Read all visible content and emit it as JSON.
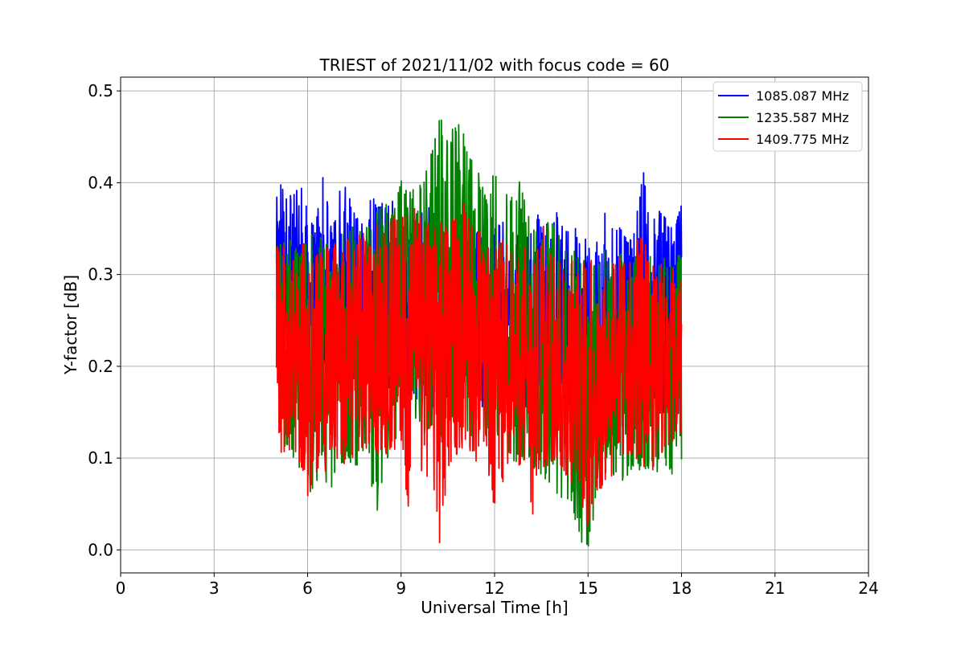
{
  "chart_data": {
    "type": "line",
    "title": "TRIEST of 2021/11/02 with focus code = 60",
    "xlabel": "Universal Time [h]",
    "ylabel": "Y-factor [dB]",
    "xlim": [
      0,
      24
    ],
    "ylim": [
      -0.025,
      0.515
    ],
    "xticks": [
      "0",
      "3",
      "6",
      "9",
      "12",
      "15",
      "18",
      "21",
      "24"
    ],
    "yticks": [
      "0.0",
      "0.1",
      "0.2",
      "0.3",
      "0.4",
      "0.5"
    ],
    "grid": true,
    "legend_position": "top-right",
    "series": [
      {
        "name": "1085.087 MHz",
        "color": "#0000ff",
        "x": [
          5.0,
          5.25,
          5.5,
          5.75,
          6.0,
          6.25,
          6.5,
          6.75,
          7.0,
          7.25,
          7.5,
          7.75,
          8.0,
          8.25,
          8.5,
          8.75,
          9.0,
          9.25,
          9.5,
          9.75,
          10.0,
          10.25,
          10.5,
          10.75,
          11.0,
          11.25,
          11.5,
          11.75,
          12.0,
          12.25,
          12.5,
          12.75,
          13.0,
          13.25,
          13.5,
          13.75,
          14.0,
          14.25,
          14.5,
          14.75,
          15.0,
          15.25,
          15.5,
          15.75,
          16.0,
          16.25,
          16.5,
          16.75,
          17.0,
          17.25,
          17.5,
          17.75,
          18.0
        ],
        "ymax": [
          0.39,
          0.42,
          0.38,
          0.41,
          0.37,
          0.36,
          0.41,
          0.36,
          0.39,
          0.4,
          0.37,
          0.36,
          0.4,
          0.38,
          0.38,
          0.39,
          0.37,
          0.38,
          0.36,
          0.38,
          0.37,
          0.36,
          0.35,
          0.36,
          0.35,
          0.34,
          0.35,
          0.34,
          0.35,
          0.36,
          0.34,
          0.35,
          0.34,
          0.36,
          0.37,
          0.36,
          0.37,
          0.35,
          0.36,
          0.34,
          0.35,
          0.34,
          0.37,
          0.35,
          0.36,
          0.34,
          0.35,
          0.42,
          0.35,
          0.38,
          0.36,
          0.35,
          0.38
        ],
        "ymin": [
          0.18,
          0.2,
          0.17,
          0.19,
          0.17,
          0.18,
          0.16,
          0.17,
          0.18,
          0.17,
          0.17,
          0.18,
          0.16,
          0.17,
          0.18,
          0.17,
          0.16,
          0.17,
          0.16,
          0.16,
          0.15,
          0.15,
          0.16,
          0.15,
          0.16,
          0.17,
          0.16,
          0.15,
          0.17,
          0.16,
          0.16,
          0.17,
          0.15,
          0.15,
          0.16,
          0.14,
          0.12,
          0.15,
          0.13,
          0.14,
          0.14,
          0.15,
          0.15,
          0.14,
          0.15,
          0.16,
          0.15,
          0.13,
          0.15,
          0.16,
          0.14,
          0.15,
          0.14
        ]
      },
      {
        "name": "1235.587 MHz",
        "color": "#008000",
        "x": [
          5.0,
          5.25,
          5.5,
          5.75,
          6.0,
          6.25,
          6.5,
          6.75,
          7.0,
          7.25,
          7.5,
          7.75,
          8.0,
          8.25,
          8.5,
          8.75,
          9.0,
          9.25,
          9.5,
          9.75,
          10.0,
          10.25,
          10.5,
          10.75,
          11.0,
          11.25,
          11.5,
          11.75,
          12.0,
          12.25,
          12.5,
          12.75,
          13.0,
          13.25,
          13.5,
          13.75,
          14.0,
          14.25,
          14.5,
          14.75,
          15.0,
          15.25,
          15.5,
          15.75,
          16.0,
          16.25,
          16.5,
          16.75,
          17.0,
          17.25,
          17.5,
          17.75,
          18.0
        ],
        "ymax": [
          0.35,
          0.36,
          0.34,
          0.33,
          0.35,
          0.34,
          0.34,
          0.33,
          0.35,
          0.34,
          0.36,
          0.35,
          0.36,
          0.37,
          0.38,
          0.37,
          0.41,
          0.43,
          0.4,
          0.41,
          0.44,
          0.49,
          0.45,
          0.47,
          0.46,
          0.43,
          0.41,
          0.38,
          0.42,
          0.4,
          0.38,
          0.41,
          0.38,
          0.36,
          0.34,
          0.36,
          0.35,
          0.34,
          0.33,
          0.32,
          0.32,
          0.31,
          0.33,
          0.32,
          0.33,
          0.31,
          0.32,
          0.33,
          0.32,
          0.31,
          0.32,
          0.31,
          0.33
        ],
        "ymin": [
          0.12,
          0.11,
          0.1,
          0.08,
          0.05,
          0.07,
          0.08,
          0.06,
          0.09,
          0.1,
          0.08,
          0.1,
          0.08,
          0.03,
          0.09,
          0.11,
          0.12,
          0.13,
          0.14,
          0.12,
          0.13,
          0.12,
          0.13,
          0.14,
          0.13,
          0.12,
          0.11,
          0.12,
          0.12,
          0.11,
          0.1,
          0.09,
          0.1,
          0.09,
          0.08,
          0.07,
          0.06,
          0.05,
          0.04,
          0.01,
          0.0,
          0.05,
          0.07,
          0.08,
          0.07,
          0.08,
          0.09,
          0.08,
          0.09,
          0.08,
          0.09,
          0.08,
          0.09
        ]
      },
      {
        "name": "1409.775 MHz",
        "color": "#ff0000",
        "x": [
          5.0,
          5.25,
          5.5,
          5.75,
          6.0,
          6.25,
          6.5,
          6.75,
          7.0,
          7.25,
          7.5,
          7.75,
          8.0,
          8.25,
          8.5,
          8.75,
          9.0,
          9.25,
          9.5,
          9.75,
          10.0,
          10.25,
          10.5,
          10.75,
          11.0,
          11.25,
          11.5,
          11.75,
          12.0,
          12.25,
          12.5,
          12.75,
          13.0,
          13.25,
          13.5,
          13.75,
          14.0,
          14.25,
          14.5,
          14.75,
          15.0,
          15.25,
          15.5,
          15.75,
          16.0,
          16.25,
          16.5,
          16.75,
          17.0,
          17.25,
          17.5,
          17.75,
          18.0
        ],
        "ymax": [
          0.33,
          0.34,
          0.32,
          0.33,
          0.34,
          0.33,
          0.32,
          0.34,
          0.33,
          0.34,
          0.33,
          0.35,
          0.34,
          0.36,
          0.35,
          0.37,
          0.36,
          0.38,
          0.37,
          0.36,
          0.37,
          0.36,
          0.35,
          0.37,
          0.38,
          0.36,
          0.35,
          0.34,
          0.33,
          0.34,
          0.33,
          0.32,
          0.34,
          0.33,
          0.38,
          0.33,
          0.32,
          0.31,
          0.32,
          0.31,
          0.32,
          0.31,
          0.3,
          0.31,
          0.32,
          0.31,
          0.33,
          0.35,
          0.31,
          0.32,
          0.3,
          0.31,
          0.3
        ],
        "ymin": [
          0.1,
          0.1,
          0.11,
          0.09,
          0.05,
          0.08,
          0.09,
          0.07,
          0.1,
          0.09,
          0.1,
          0.1,
          0.11,
          0.1,
          0.1,
          0.11,
          0.1,
          0.04,
          0.09,
          0.08,
          0.07,
          0.0,
          0.09,
          0.1,
          0.11,
          0.1,
          0.09,
          0.08,
          0.04,
          0.07,
          0.1,
          0.08,
          0.09,
          0.02,
          0.08,
          0.09,
          0.1,
          0.08,
          0.07,
          0.05,
          0.02,
          0.06,
          0.07,
          0.08,
          0.09,
          0.1,
          0.1,
          0.09,
          0.08,
          0.1,
          0.11,
          0.1,
          0.09
        ]
      }
    ]
  }
}
